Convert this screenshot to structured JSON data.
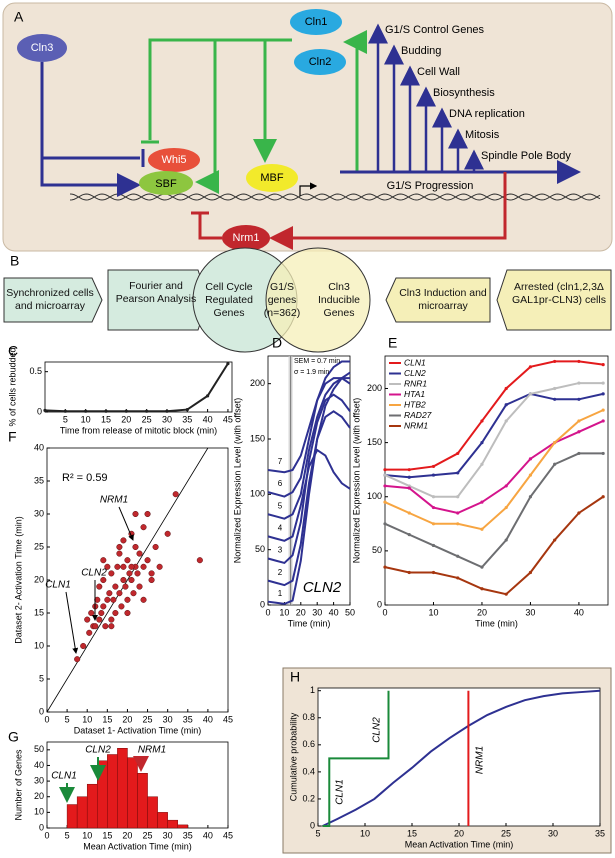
{
  "panel_a": {
    "label": "A",
    "proteins": {
      "cln3": "Cln3",
      "cln1": "Cln1",
      "cln2": "Cln2",
      "whi5": "Whi5",
      "sbf": "SBF",
      "mbf": "MBF",
      "nrm1": "Nrm1"
    },
    "genes": [
      "G1/S Control Genes",
      "Budding",
      "Cell Wall",
      "Biosynthesis",
      "DNA replication",
      "Mitosis",
      "Spindle Pole Body"
    ],
    "progression": "G1/S Progression"
  },
  "panel_b": {
    "label": "B",
    "left_steps": [
      "Synchronized cells and microarray",
      "Fourier and Pearson Analysis"
    ],
    "venn": {
      "left": "Cell Cycle Regulated Genes",
      "overlap": "G1/S genes (n=362)",
      "right": "Cln3 Inducible Genes"
    },
    "right_steps": [
      "Cln3 Induction and microarray",
      "Arrested (cln1,2,3Δ GAL1pr-CLN3) cells"
    ]
  },
  "chart_data": [
    {
      "type": "line",
      "label": "C",
      "xlabel": "Time from release of mitotic block (min)",
      "ylabel": "% of cells rebudded",
      "x": [
        0,
        5,
        10,
        15,
        20,
        25,
        30,
        35,
        40,
        45
      ],
      "values": [
        0.02,
        0.01,
        0.01,
        0.01,
        0.01,
        0.01,
        0.01,
        0.03,
        0.2,
        0.6
      ],
      "color": "#222222",
      "markers": true,
      "xlim": [
        0,
        46
      ],
      "xticks": [
        5,
        10,
        15,
        20,
        25,
        30,
        35,
        40,
        45
      ],
      "ylim": [
        0,
        0.62
      ],
      "yticks": [
        0,
        0.5
      ]
    },
    {
      "type": "line",
      "label": "D",
      "xlabel": "Time (min)",
      "ylabel": "Normalized Expression Level (with offset)",
      "x": [
        0,
        5,
        10,
        15,
        20,
        25,
        30,
        35,
        40,
        45,
        50
      ],
      "series": [
        {
          "name": "1",
          "color": "#2e3192",
          "values": [
            3,
            2,
            1,
            4,
            40,
            100,
            150,
            180,
            195,
            205,
            210
          ]
        },
        {
          "name": "2",
          "color": "#2e3192",
          "values": [
            22,
            20,
            18,
            22,
            55,
            110,
            150,
            170,
            175,
            170,
            160
          ]
        },
        {
          "name": "3",
          "color": "#2e3192",
          "values": [
            42,
            40,
            38,
            45,
            75,
            130,
            165,
            185,
            190,
            185,
            175
          ]
        },
        {
          "name": "4",
          "color": "#2e3192",
          "values": [
            62,
            60,
            58,
            62,
            90,
            125,
            140,
            135,
            120,
            110,
            105
          ]
        },
        {
          "name": "5",
          "color": "#2e3192",
          "values": [
            82,
            80,
            78,
            82,
            100,
            140,
            170,
            190,
            200,
            205,
            205
          ]
        },
        {
          "name": "6",
          "color": "#2e3192",
          "values": [
            102,
            100,
            98,
            102,
            115,
            150,
            185,
            205,
            215,
            220,
            220
          ]
        },
        {
          "name": "7",
          "color": "#2e3192",
          "values": [
            122,
            121,
            120,
            122,
            135,
            160,
            185,
            200,
            205,
            205,
            200
          ]
        }
      ],
      "legend": "inline",
      "annotations": [
        "SEM = 0.7 min",
        "σ = 1.9 min",
        "CLN2"
      ],
      "xlim": [
        0,
        50
      ],
      "xticks": [
        0,
        10,
        20,
        30,
        40,
        50
      ],
      "ylim": [
        0,
        225
      ],
      "yticks": [
        0,
        50,
        100,
        150,
        200
      ]
    },
    {
      "type": "line",
      "label": "E",
      "xlabel": "Time (min)",
      "ylabel": "Normalized Expression Level (with offset)",
      "x": [
        0,
        5,
        10,
        15,
        20,
        25,
        30,
        35,
        40,
        45
      ],
      "series": [
        {
          "name": "CLN1",
          "color": "#e31a1c",
          "values": [
            125,
            125,
            128,
            140,
            170,
            200,
            220,
            225,
            225,
            222
          ]
        },
        {
          "name": "CLN2",
          "color": "#2e3192",
          "values": [
            120,
            118,
            120,
            122,
            150,
            185,
            195,
            190,
            190,
            195
          ]
        },
        {
          "name": "RNR1",
          "color": "#bdbdbd",
          "values": [
            120,
            110,
            100,
            100,
            130,
            170,
            195,
            200,
            205,
            205
          ]
        },
        {
          "name": "HTA1",
          "color": "#d4148c",
          "values": [
            110,
            108,
            90,
            85,
            95,
            110,
            135,
            150,
            160,
            170
          ]
        },
        {
          "name": "HTB2",
          "color": "#f7a541",
          "values": [
            95,
            85,
            75,
            75,
            70,
            90,
            120,
            150,
            170,
            180
          ]
        },
        {
          "name": "RAD27",
          "color": "#6d6e71",
          "values": [
            75,
            65,
            55,
            45,
            35,
            60,
            100,
            130,
            140,
            140
          ]
        },
        {
          "name": "NRM1",
          "color": "#a6360f",
          "values": [
            35,
            30,
            30,
            25,
            15,
            10,
            30,
            60,
            85,
            100
          ]
        }
      ],
      "legend": "upper left",
      "markers": true,
      "xlim": [
        0,
        46
      ],
      "xticks": [
        0,
        10,
        20,
        30,
        40
      ],
      "ylim": [
        0,
        230
      ],
      "yticks": [
        0,
        50,
        100,
        150,
        200
      ]
    },
    {
      "type": "scatter",
      "label": "F",
      "xlabel": "Dataset 1- Activation Time (min)",
      "ylabel": "Dataset 2- Activation Time (min)",
      "x": [
        7.5,
        9,
        10,
        10.5,
        11,
        11.5,
        12,
        12,
        12.5,
        13,
        13,
        13.5,
        14,
        14,
        14.5,
        15,
        15,
        15.5,
        16,
        16,
        16.5,
        17,
        17,
        17.5,
        18,
        18,
        18.5,
        19,
        19,
        19.5,
        20,
        20,
        20.5,
        21,
        21,
        21.5,
        22,
        22,
        22.5,
        23,
        23,
        24,
        24,
        25,
        25,
        26,
        27,
        28,
        30,
        32,
        38,
        20,
        18,
        16,
        22,
        24,
        14,
        26,
        19,
        21
      ],
      "y": [
        8,
        10,
        14,
        12,
        15,
        13,
        13,
        16,
        17,
        14,
        19,
        15,
        16,
        20,
        13,
        17,
        22,
        18,
        14,
        21,
        17,
        19,
        15,
        22,
        18,
        24,
        16,
        20,
        22,
        19,
        23,
        17,
        21,
        20,
        27,
        18,
        22,
        25,
        21,
        24,
        19,
        22,
        28,
        23,
        30,
        21,
        25,
        22,
        27,
        33,
        23,
        15,
        25,
        13,
        30,
        17,
        23,
        20,
        26,
        22
      ],
      "color": "#c0282d",
      "annotations": [
        "R² = 0.59",
        "CLN1",
        "CLN2",
        "NRM1"
      ],
      "xlim": [
        0,
        45
      ],
      "xticks": [
        0,
        5,
        10,
        15,
        20,
        25,
        30,
        35,
        40,
        45
      ],
      "ylim": [
        0,
        40
      ],
      "yticks": [
        0,
        5,
        10,
        15,
        20,
        25,
        30,
        35,
        40
      ]
    },
    {
      "type": "histogram",
      "label": "G",
      "xlabel": "Mean Activation Time (min)",
      "ylabel": "Number of Genes",
      "bins": [
        5,
        7.5,
        10,
        12.5,
        15,
        17.5,
        20,
        22.5,
        25,
        27.5,
        30,
        32.5,
        35
      ],
      "values": [
        15,
        20,
        28,
        43,
        47,
        51,
        45,
        35,
        20,
        10,
        5,
        2
      ],
      "color": "#e31a1c",
      "annotations": [
        "CLN1",
        "CLN2",
        "NRM1"
      ],
      "xlim": [
        0,
        45
      ],
      "xticks": [
        0,
        5,
        10,
        15,
        20,
        25,
        30,
        35,
        40,
        45
      ],
      "ylim": [
        0,
        55
      ],
      "yticks": [
        0,
        10,
        20,
        30,
        40,
        50
      ]
    },
    {
      "type": "line",
      "label": "H",
      "xlabel": "Mean Activation Time (min)",
      "ylabel": "Cumulative probability",
      "series": [
        {
          "color": "#2e3192",
          "x": [
            5.5,
            7,
            9,
            11,
            13,
            15,
            17,
            19,
            21,
            23,
            25,
            27,
            29,
            31,
            33,
            35
          ],
          "values": [
            0,
            0.05,
            0.12,
            0.2,
            0.32,
            0.43,
            0.55,
            0.65,
            0.74,
            0.82,
            0.88,
            0.93,
            0.96,
            0.98,
            0.99,
            1
          ]
        },
        {
          "color": "#1a8a3a",
          "x": [
            5.5,
            6.2,
            6.2,
            12.5,
            12.5
          ],
          "values": [
            0,
            0,
            0.5,
            0.5,
            1
          ]
        },
        {
          "color": "#e31a1c",
          "x": [
            21,
            21
          ],
          "values": [
            0,
            1
          ]
        }
      ],
      "annotations": [
        "CLN1",
        "CLN2",
        "NRM1"
      ],
      "xlim": [
        5,
        35
      ],
      "xticks": [
        5,
        10,
        15,
        20,
        25,
        30,
        35
      ],
      "ylim": [
        0,
        1.02
      ],
      "yticks": [
        0,
        0.2,
        0.4,
        0.6,
        0.8,
        1
      ]
    }
  ]
}
